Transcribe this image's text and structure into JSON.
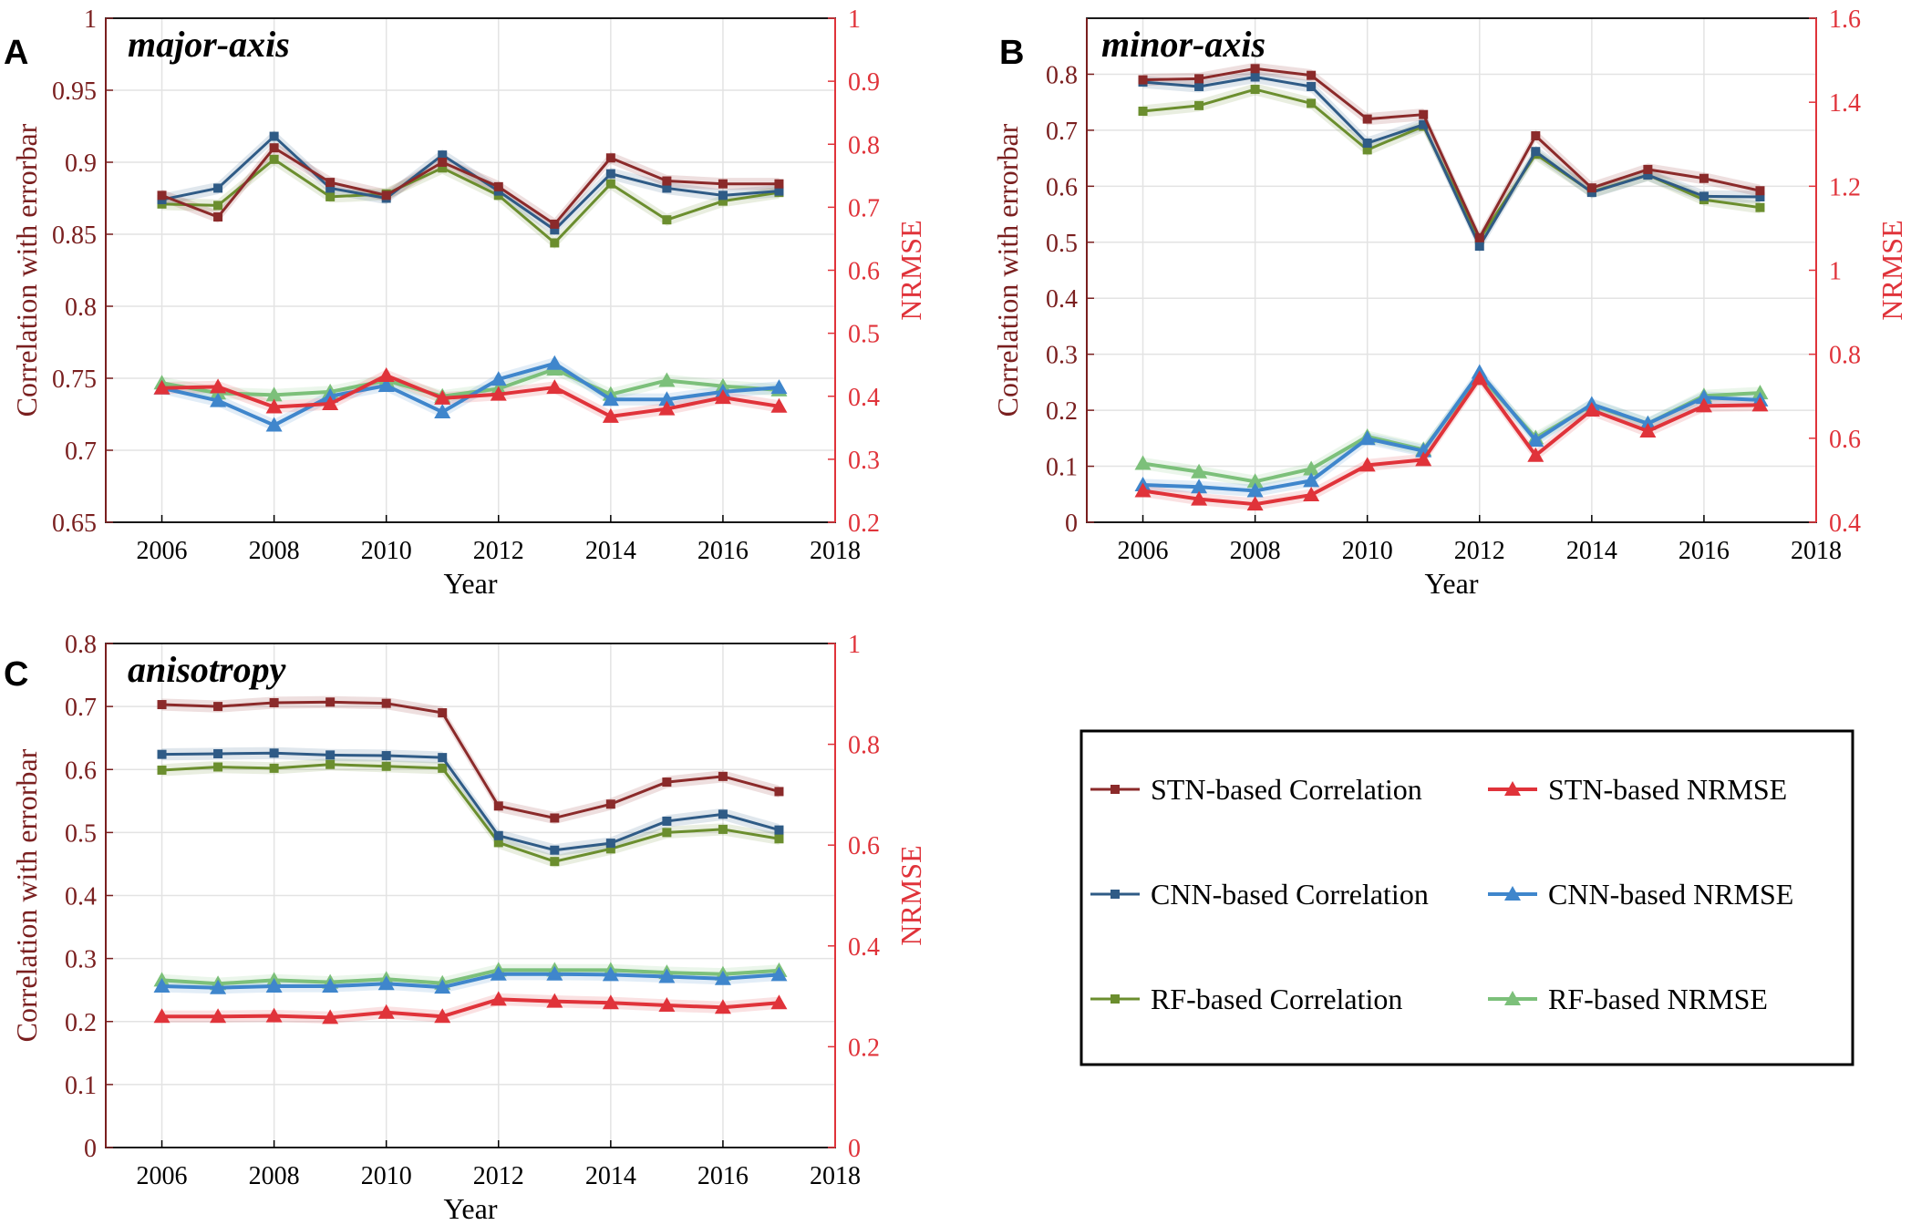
{
  "colors": {
    "stn_corr": "#8b2a2a",
    "cnn_corr": "#2f5b86",
    "rf_corr": "#6b8e2e",
    "stn_nrmse": "#e0333a",
    "cnn_nrmse": "#3f86cc",
    "rf_nrmse": "#7cc07a",
    "left_axis": "#7a1f1f",
    "right_axis": "#e0333a",
    "grid": "#e3e3e3"
  },
  "legend": {
    "stn_corr": "STN-based Correlation",
    "stn_nrmse": "STN-based NRMSE",
    "cnn_corr": "CNN-based Correlation",
    "cnn_nrmse": "CNN-based NRMSE",
    "rf_corr": "RF-based Correlation",
    "rf_nrmse": "RF-based NRMSE"
  },
  "chart_data": [
    {
      "type": "line",
      "panel": "A",
      "title": "major-axis",
      "xlabel": "Year",
      "ylabel": "Correlation with errorbar",
      "y2label": "NRMSE",
      "xlim": [
        2005,
        2018
      ],
      "xticks": [
        2006,
        2008,
        2010,
        2012,
        2014,
        2016,
        2018
      ],
      "ylim": [
        0.65,
        1.0
      ],
      "yticks": [
        "0.65",
        "0.7",
        "0.75",
        "0.8",
        "0.85",
        "0.9",
        "0.95",
        "1"
      ],
      "y2lim": [
        0.2,
        1.0
      ],
      "y2ticks": [
        "0.2",
        "0.3",
        "0.4",
        "0.5",
        "0.6",
        "0.7",
        "0.8",
        "0.9",
        "1"
      ],
      "x": [
        2006,
        2007,
        2008,
        2009,
        2010,
        2011,
        2012,
        2013,
        2014,
        2015,
        2016,
        2017
      ],
      "series": [
        {
          "key": "rf_corr",
          "name": "RF-based Correlation",
          "axis": "left",
          "marker": "square",
          "values": [
            0.871,
            0.87,
            0.902,
            0.876,
            0.878,
            0.896,
            0.877,
            0.844,
            0.885,
            0.86,
            0.873,
            0.879
          ]
        },
        {
          "key": "cnn_corr",
          "name": "CNN-based Correlation",
          "axis": "left",
          "marker": "square",
          "values": [
            0.874,
            0.882,
            0.918,
            0.882,
            0.875,
            0.905,
            0.88,
            0.853,
            0.892,
            0.882,
            0.877,
            0.88
          ]
        },
        {
          "key": "stn_corr",
          "name": "STN-based Correlation",
          "axis": "left",
          "marker": "square",
          "values": [
            0.877,
            0.862,
            0.91,
            0.886,
            0.877,
            0.9,
            0.883,
            0.857,
            0.903,
            0.887,
            0.885,
            0.885
          ]
        },
        {
          "key": "rf_nrmse",
          "name": "RF-based NRMSE",
          "axis": "right",
          "marker": "triangle",
          "values": [
            0.421,
            0.405,
            0.402,
            0.407,
            0.425,
            0.4,
            0.412,
            0.443,
            0.403,
            0.425,
            0.416,
            0.41
          ]
        },
        {
          "key": "cnn_nrmse",
          "name": "CNN-based NRMSE",
          "axis": "right",
          "marker": "triangle",
          "values": [
            0.413,
            0.393,
            0.354,
            0.4,
            0.417,
            0.375,
            0.427,
            0.452,
            0.395,
            0.395,
            0.407,
            0.414
          ]
        },
        {
          "key": "stn_nrmse",
          "name": "STN-based NRMSE",
          "axis": "right",
          "marker": "triangle",
          "values": [
            0.413,
            0.415,
            0.383,
            0.388,
            0.433,
            0.397,
            0.403,
            0.414,
            0.368,
            0.38,
            0.398,
            0.384
          ]
        }
      ]
    },
    {
      "type": "line",
      "panel": "B",
      "title": "minor-axis",
      "xlabel": "Year",
      "ylabel": "Correlation with errorbar",
      "y2label": "NRMSE",
      "xlim": [
        2005,
        2018
      ],
      "xticks": [
        2006,
        2008,
        2010,
        2012,
        2014,
        2016,
        2018
      ],
      "ylim": [
        0,
        0.9
      ],
      "yticks": [
        "0",
        "0.1",
        "0.2",
        "0.3",
        "0.4",
        "0.5",
        "0.6",
        "0.7",
        "0.8"
      ],
      "y2lim": [
        0.4,
        1.6
      ],
      "y2ticks": [
        "0.4",
        "0.6",
        "0.8",
        "1",
        "1.2",
        "1.4",
        "1.6"
      ],
      "x": [
        2006,
        2007,
        2008,
        2009,
        2010,
        2011,
        2012,
        2013,
        2014,
        2015,
        2016,
        2017
      ],
      "series": [
        {
          "key": "rf_corr",
          "name": "RF-based Correlation",
          "axis": "left",
          "marker": "square",
          "values": [
            0.734,
            0.744,
            0.773,
            0.748,
            0.665,
            0.707,
            0.505,
            0.657,
            0.59,
            0.62,
            0.576,
            0.562
          ]
        },
        {
          "key": "cnn_corr",
          "name": "CNN-based Correlation",
          "axis": "left",
          "marker": "square",
          "values": [
            0.786,
            0.778,
            0.795,
            0.778,
            0.677,
            0.71,
            0.493,
            0.662,
            0.589,
            0.62,
            0.582,
            0.581
          ]
        },
        {
          "key": "stn_corr",
          "name": "STN-based Correlation",
          "axis": "left",
          "marker": "square",
          "values": [
            0.79,
            0.792,
            0.81,
            0.798,
            0.72,
            0.728,
            0.508,
            0.69,
            0.597,
            0.63,
            0.614,
            0.592
          ]
        },
        {
          "key": "rf_nrmse",
          "name": "RF-based NRMSE",
          "axis": "right",
          "marker": "triangle",
          "values": [
            0.54,
            0.52,
            0.497,
            0.527,
            0.604,
            0.573,
            0.75,
            0.601,
            0.679,
            0.635,
            0.701,
            0.708
          ]
        },
        {
          "key": "cnn_nrmse",
          "name": "CNN-based NRMSE",
          "axis": "right",
          "marker": "triangle",
          "values": [
            0.489,
            0.484,
            0.475,
            0.499,
            0.599,
            0.57,
            0.757,
            0.595,
            0.681,
            0.635,
            0.697,
            0.691
          ]
        },
        {
          "key": "stn_nrmse",
          "name": "STN-based NRMSE",
          "axis": "right",
          "marker": "triangle",
          "values": [
            0.475,
            0.455,
            0.443,
            0.465,
            0.536,
            0.549,
            0.742,
            0.559,
            0.667,
            0.617,
            0.677,
            0.679
          ]
        }
      ]
    },
    {
      "type": "line",
      "panel": "C",
      "title": "anisotropy",
      "xlabel": "Year",
      "ylabel": "Correlation with errorbar",
      "y2label": "NRMSE",
      "xlim": [
        2005,
        2018
      ],
      "xticks": [
        2006,
        2008,
        2010,
        2012,
        2014,
        2016,
        2018
      ],
      "ylim": [
        0,
        0.8
      ],
      "yticks": [
        "0",
        "0.1",
        "0.2",
        "0.3",
        "0.4",
        "0.5",
        "0.6",
        "0.7",
        "0.8"
      ],
      "y2lim": [
        0,
        1.0
      ],
      "y2ticks": [
        "0",
        "0.2",
        "0.4",
        "0.6",
        "0.8",
        "1"
      ],
      "x": [
        2006,
        2007,
        2008,
        2009,
        2010,
        2011,
        2012,
        2013,
        2014,
        2015,
        2016,
        2017
      ],
      "series": [
        {
          "key": "rf_corr",
          "name": "RF-based Correlation",
          "axis": "left",
          "marker": "square",
          "values": [
            0.599,
            0.604,
            0.602,
            0.608,
            0.605,
            0.602,
            0.484,
            0.454,
            0.474,
            0.5,
            0.505,
            0.49
          ]
        },
        {
          "key": "cnn_corr",
          "name": "CNN-based Correlation",
          "axis": "left",
          "marker": "square",
          "values": [
            0.624,
            0.625,
            0.626,
            0.623,
            0.622,
            0.619,
            0.495,
            0.472,
            0.483,
            0.518,
            0.529,
            0.504
          ]
        },
        {
          "key": "stn_corr",
          "name": "STN-based Correlation",
          "axis": "left",
          "marker": "square",
          "values": [
            0.703,
            0.7,
            0.706,
            0.707,
            0.705,
            0.69,
            0.542,
            0.523,
            0.545,
            0.58,
            0.589,
            0.565
          ]
        },
        {
          "key": "rf_nrmse",
          "name": "RF-based NRMSE",
          "axis": "right",
          "marker": "triangle",
          "values": [
            0.332,
            0.325,
            0.332,
            0.328,
            0.334,
            0.326,
            0.352,
            0.352,
            0.352,
            0.347,
            0.344,
            0.351
          ]
        },
        {
          "key": "cnn_nrmse",
          "name": "CNN-based NRMSE",
          "axis": "right",
          "marker": "triangle",
          "values": [
            0.32,
            0.317,
            0.32,
            0.32,
            0.325,
            0.318,
            0.344,
            0.344,
            0.343,
            0.339,
            0.335,
            0.343
          ]
        },
        {
          "key": "stn_nrmse",
          "name": "STN-based NRMSE",
          "axis": "right",
          "marker": "triangle",
          "values": [
            0.26,
            0.26,
            0.261,
            0.258,
            0.268,
            0.26,
            0.294,
            0.29,
            0.287,
            0.282,
            0.278,
            0.287
          ]
        }
      ]
    }
  ]
}
